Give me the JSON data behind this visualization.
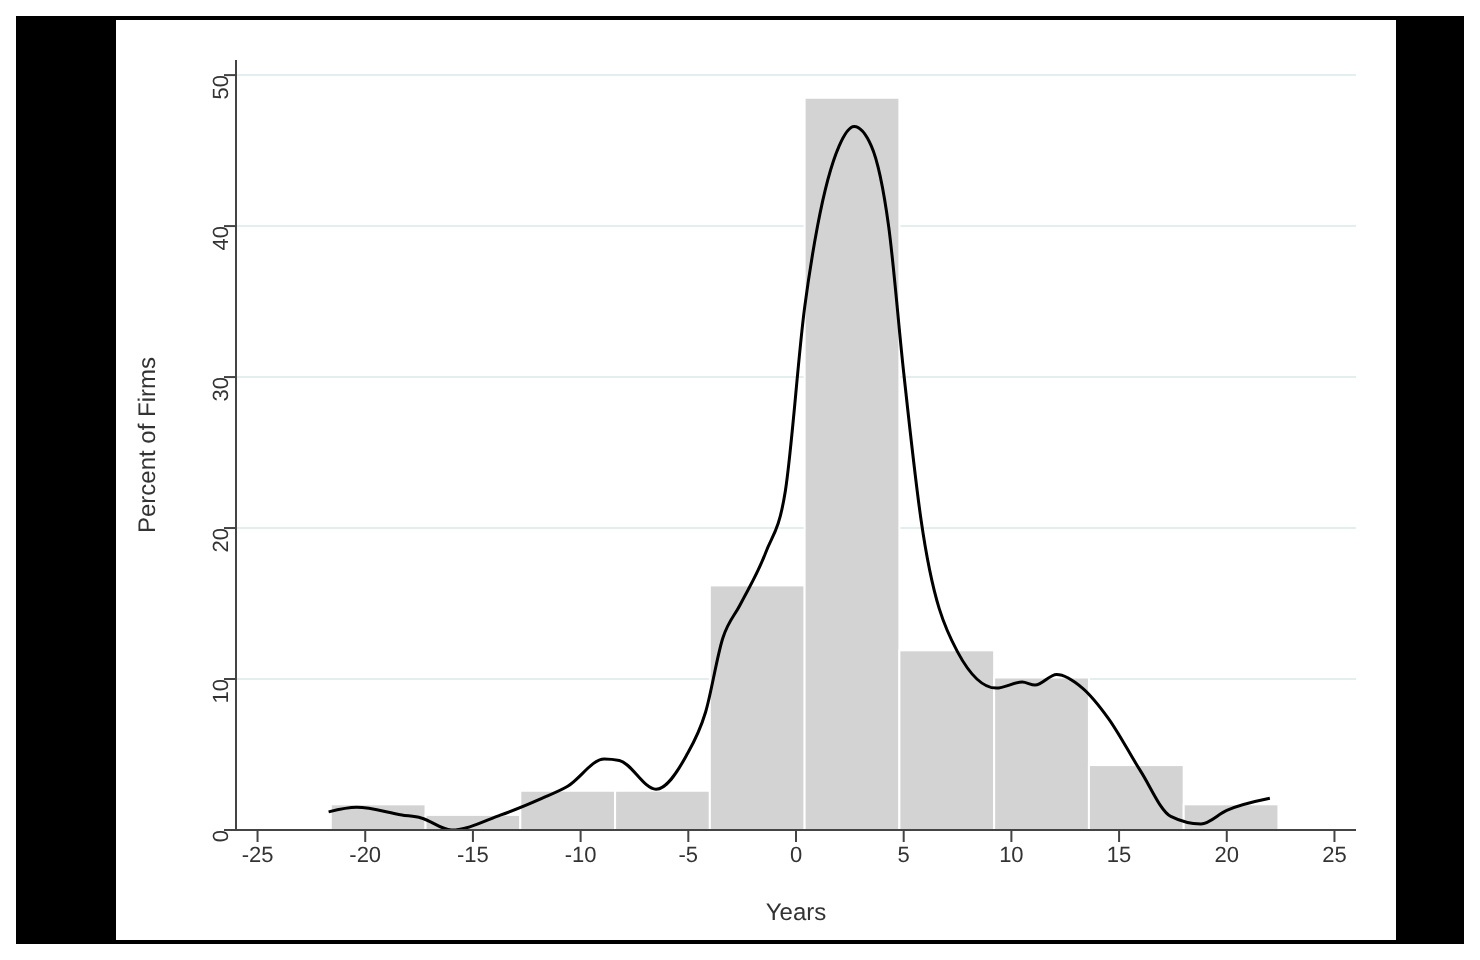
{
  "chart_data": {
    "type": "histogram",
    "xlabel": "Years",
    "ylabel": "Percent of Firms",
    "bins": [
      -21.6,
      -17.2,
      -12.8,
      -8.4,
      -4.0,
      0.4,
      4.8,
      9.2,
      13.6,
      18.0,
      22.4
    ],
    "values": [
      1.7,
      1.0,
      2.6,
      2.6,
      16.2,
      48.5,
      11.9,
      10.1,
      4.3,
      1.7
    ],
    "color": "#d3d3d3",
    "series": [
      {
        "type": "line",
        "color": "#000000",
        "x": [
          -21.7,
          -20.4,
          -18.3,
          -17.4,
          -16.0,
          -13.7,
          -11.8,
          -10.6,
          -8.9,
          -8.2,
          -6.5,
          -5.1,
          -4.2,
          -3.4,
          -2.6,
          -1.4,
          -0.5,
          0.4,
          1.0,
          2.0,
          2.7,
          3.5,
          4.3,
          5.0,
          5.8,
          7.5,
          9.3,
          10.5,
          11.1,
          12.1,
          13.3,
          14.5,
          16.0,
          17.4,
          18.8,
          20.0,
          22.0
        ],
        "values": [
          1.2,
          1.5,
          1.0,
          0.8,
          0.0,
          1.0,
          2.1,
          2.9,
          4.7,
          4.6,
          2.7,
          4.9,
          7.8,
          12.7,
          14.9,
          18.4,
          22.4,
          34.6,
          40.0,
          45.3,
          46.6,
          45.3,
          40.0,
          30.3,
          20.6,
          11.8,
          9.4,
          9.8,
          9.6,
          10.3,
          9.4,
          7.4,
          3.9,
          0.9,
          0.4,
          1.3,
          2.1
        ]
      }
    ],
    "xlim": [
      -26,
      26
    ],
    "xticks": [
      -25,
      -20,
      -15,
      -10,
      -5,
      0,
      5,
      10,
      15,
      20,
      25
    ],
    "ylim": [
      0,
      51
    ],
    "yticks": [
      0,
      10,
      20,
      30,
      40,
      50
    ],
    "grid": "y",
    "marker": "none",
    "line_style": "solid",
    "legend": false
  }
}
